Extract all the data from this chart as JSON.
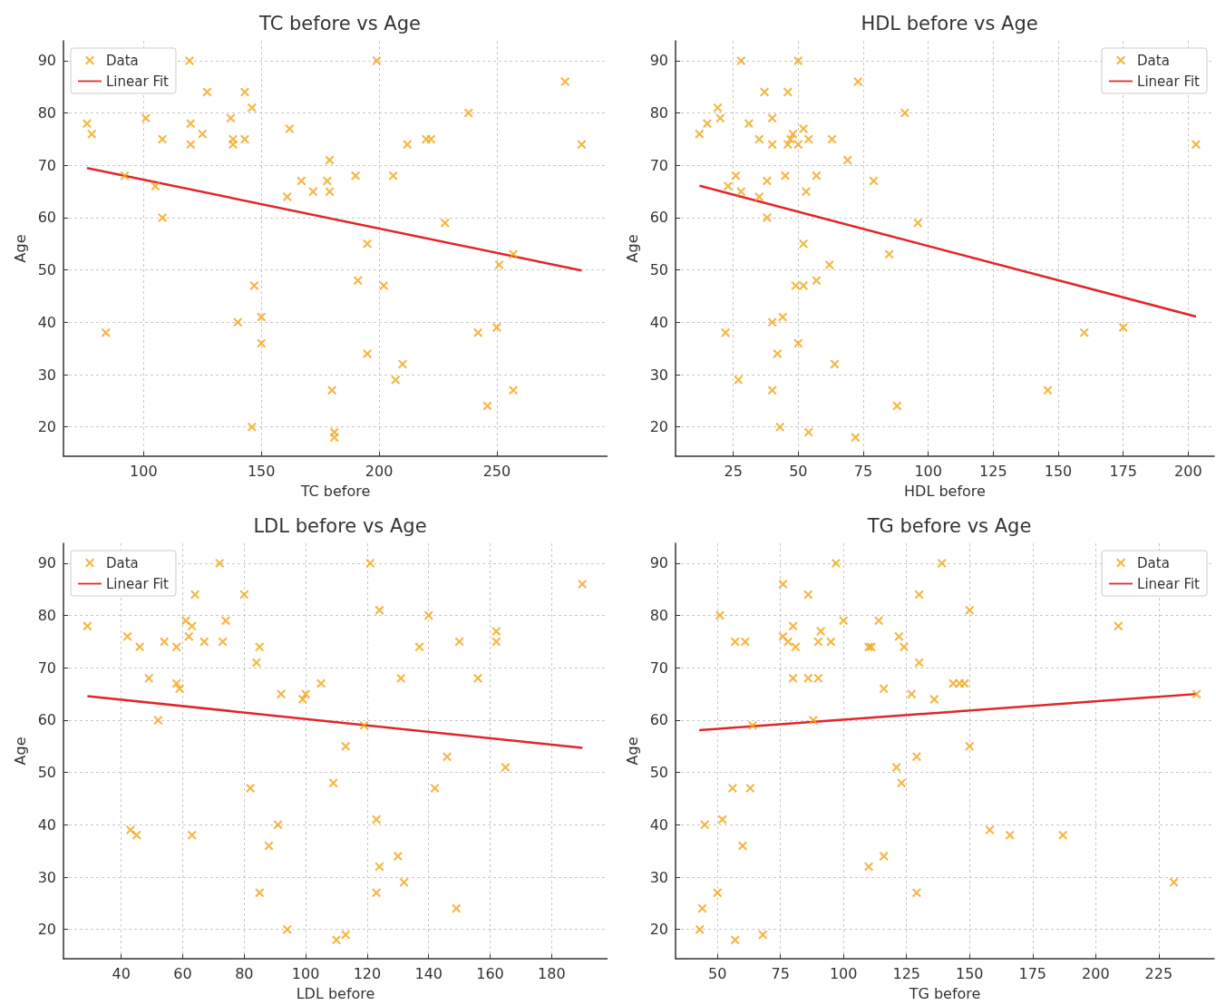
{
  "chart_data": [
    {
      "type": "scatter",
      "title": "TC before vs Age",
      "xlabel": "TC before",
      "ylabel": "Age",
      "xlim": [
        66,
        297
      ],
      "xticks": [
        100,
        150,
        200,
        250
      ],
      "ylim": [
        14.4,
        93.8
      ],
      "yticks": [
        20,
        30,
        40,
        50,
        60,
        70,
        80,
        90
      ],
      "grid": true,
      "legend": "top left",
      "series": [
        {
          "name": "Data",
          "marker": "cross",
          "color": "#f2a516",
          "x": [
            76,
            78,
            119.5,
            127,
            143,
            146,
            101,
            120,
            137,
            125,
            162,
            108,
            120,
            138,
            138,
            143,
            199,
            279,
            238,
            212,
            220,
            222,
            286,
            179,
            92,
            105,
            108,
            167,
            178,
            172,
            179,
            161,
            190,
            206,
            228,
            195,
            257,
            251,
            147,
            191,
            202,
            84,
            140,
            150,
            150,
            242,
            250,
            195,
            210,
            207,
            180,
            257,
            246,
            146,
            181,
            181
          ],
          "values": [
            78,
            76,
            90,
            84,
            84,
            81,
            79,
            78,
            79,
            76,
            77,
            75,
            74,
            75,
            74,
            75,
            90,
            86,
            80,
            74,
            75,
            75,
            74,
            71,
            68,
            66,
            60,
            67,
            67,
            65,
            65,
            64,
            68,
            68,
            59,
            55,
            53,
            51,
            47,
            48,
            47,
            38,
            40,
            41,
            36,
            38,
            39,
            34,
            32,
            29,
            27,
            27,
            24,
            20,
            19,
            18
          ]
        },
        {
          "name": "Linear Fit",
          "type": "line",
          "marker": "none",
          "color": "#e0262b",
          "x": [
            76,
            286
          ],
          "values": [
            69.5,
            49.9
          ]
        }
      ]
    },
    {
      "type": "scatter",
      "title": "HDL before vs Age",
      "xlabel": "HDL before",
      "ylabel": "Age",
      "xlim": [
        2.8,
        210
      ],
      "xticks": [
        25,
        50,
        75,
        100,
        125,
        150,
        175,
        200
      ],
      "ylim": [
        14.4,
        93.8
      ],
      "yticks": [
        20,
        30,
        40,
        50,
        60,
        70,
        80,
        90
      ],
      "grid": true,
      "legend": "top right",
      "series": [
        {
          "name": "Data",
          "marker": "cross",
          "color": "#f2a516",
          "x": [
            28,
            50,
            73,
            37,
            46,
            19,
            20,
            15,
            12,
            31,
            40,
            91,
            35,
            40,
            46,
            48,
            47,
            50,
            52,
            54,
            63,
            203,
            69,
            26,
            23,
            28,
            38,
            45,
            57,
            53,
            79,
            35,
            38,
            96,
            52,
            85,
            62,
            49,
            52,
            57,
            40,
            44,
            22,
            160,
            175,
            50,
            42,
            64,
            27,
            40,
            146,
            88,
            43,
            54,
            72
          ],
          "values": [
            90,
            90,
            86,
            84,
            84,
            81,
            79,
            78,
            76,
            78,
            79,
            80,
            75,
            74,
            74,
            76,
            75,
            74,
            77,
            75,
            75,
            74,
            71,
            68,
            66,
            65,
            67,
            68,
            68,
            65,
            67,
            64,
            60,
            59,
            55,
            53,
            51,
            47,
            47,
            48,
            40,
            41,
            38,
            38,
            39,
            36,
            34,
            32,
            29,
            27,
            27,
            24,
            20,
            19,
            18
          ]
        },
        {
          "name": "Linear Fit",
          "type": "line",
          "marker": "none",
          "color": "#e0262b",
          "x": [
            12,
            203
          ],
          "values": [
            66.1,
            41.1
          ]
        }
      ]
    },
    {
      "type": "scatter",
      "title": "LDL before vs Age",
      "xlabel": "LDL before",
      "ylabel": "Age",
      "xlim": [
        21.2,
        198.2
      ],
      "xticks": [
        40,
        60,
        80,
        100,
        120,
        140,
        160,
        180
      ],
      "ylim": [
        14.4,
        93.8
      ],
      "yticks": [
        20,
        30,
        40,
        50,
        60,
        70,
        80,
        90
      ],
      "grid": true,
      "legend": "top left",
      "series": [
        {
          "name": "Data",
          "marker": "cross",
          "color": "#f2a516",
          "x": [
            29,
            72,
            121,
            190,
            64,
            80,
            124,
            61,
            74,
            140,
            63,
            42,
            62,
            162,
            46,
            54,
            58,
            67,
            73,
            85,
            137,
            150,
            162,
            84,
            49,
            58,
            59,
            131,
            156,
            105,
            92,
            100,
            99,
            52,
            119,
            113,
            146,
            165,
            82,
            109,
            142,
            43,
            45,
            63,
            91,
            123,
            88,
            130,
            124,
            132,
            85,
            123,
            149,
            94,
            113,
            110
          ],
          "values": [
            78,
            90,
            90,
            86,
            84,
            84,
            81,
            79,
            79,
            80,
            78,
            76,
            76,
            77,
            74,
            75,
            74,
            75,
            75,
            74,
            74,
            75,
            75,
            71,
            68,
            67,
            66,
            68,
            68,
            67,
            65,
            65,
            64,
            60,
            59,
            55,
            53,
            51,
            47,
            48,
            47,
            39,
            38,
            38,
            40,
            41,
            36,
            34,
            32,
            29,
            27,
            27,
            24,
            20,
            19,
            18
          ]
        },
        {
          "name": "Linear Fit",
          "type": "line",
          "marker": "none",
          "color": "#e0262b",
          "x": [
            29,
            190
          ],
          "values": [
            64.6,
            54.7
          ]
        }
      ]
    },
    {
      "type": "scatter",
      "title": "TG before vs Age",
      "xlabel": "TG before",
      "ylabel": "Age",
      "xlim": [
        33.4,
        247
      ],
      "xticks": [
        50,
        75,
        100,
        125,
        150,
        175,
        200,
        225
      ],
      "ylim": [
        14.4,
        93.8
      ],
      "yticks": [
        20,
        30,
        40,
        50,
        60,
        70,
        80,
        90
      ],
      "grid": true,
      "legend": "top right",
      "series": [
        {
          "name": "Data",
          "marker": "cross",
          "color": "#f2a516",
          "x": [
            97,
            139,
            76,
            86,
            130,
            51,
            150,
            80,
            100,
            114,
            209,
            57,
            61,
            76,
            78,
            81,
            90,
            91,
            95,
            110,
            111,
            122,
            124,
            130,
            80,
            86,
            90,
            116,
            127,
            136,
            143.5,
            146,
            148,
            240,
            64,
            88,
            150,
            129,
            121,
            123,
            56,
            63,
            45,
            52,
            158,
            166,
            187,
            60,
            110,
            116,
            50,
            129,
            231,
            44,
            43,
            57,
            68
          ],
          "values": [
            90,
            90,
            86,
            84,
            84,
            80,
            81,
            78,
            79,
            79,
            78,
            75,
            75,
            76,
            75,
            74,
            75,
            77,
            75,
            74,
            74,
            76,
            74,
            71,
            68,
            68,
            68,
            66,
            65,
            64,
            67,
            67,
            67,
            65,
            59,
            60,
            55,
            53,
            51,
            48,
            47,
            47,
            40,
            41,
            39,
            38,
            38,
            36,
            32,
            34,
            27,
            27,
            29,
            24,
            20,
            18,
            19
          ]
        },
        {
          "name": "Linear Fit",
          "type": "line",
          "marker": "none",
          "color": "#e0262b",
          "x": [
            42.8,
            240
          ],
          "values": [
            58.1,
            65.0
          ]
        }
      ]
    }
  ]
}
